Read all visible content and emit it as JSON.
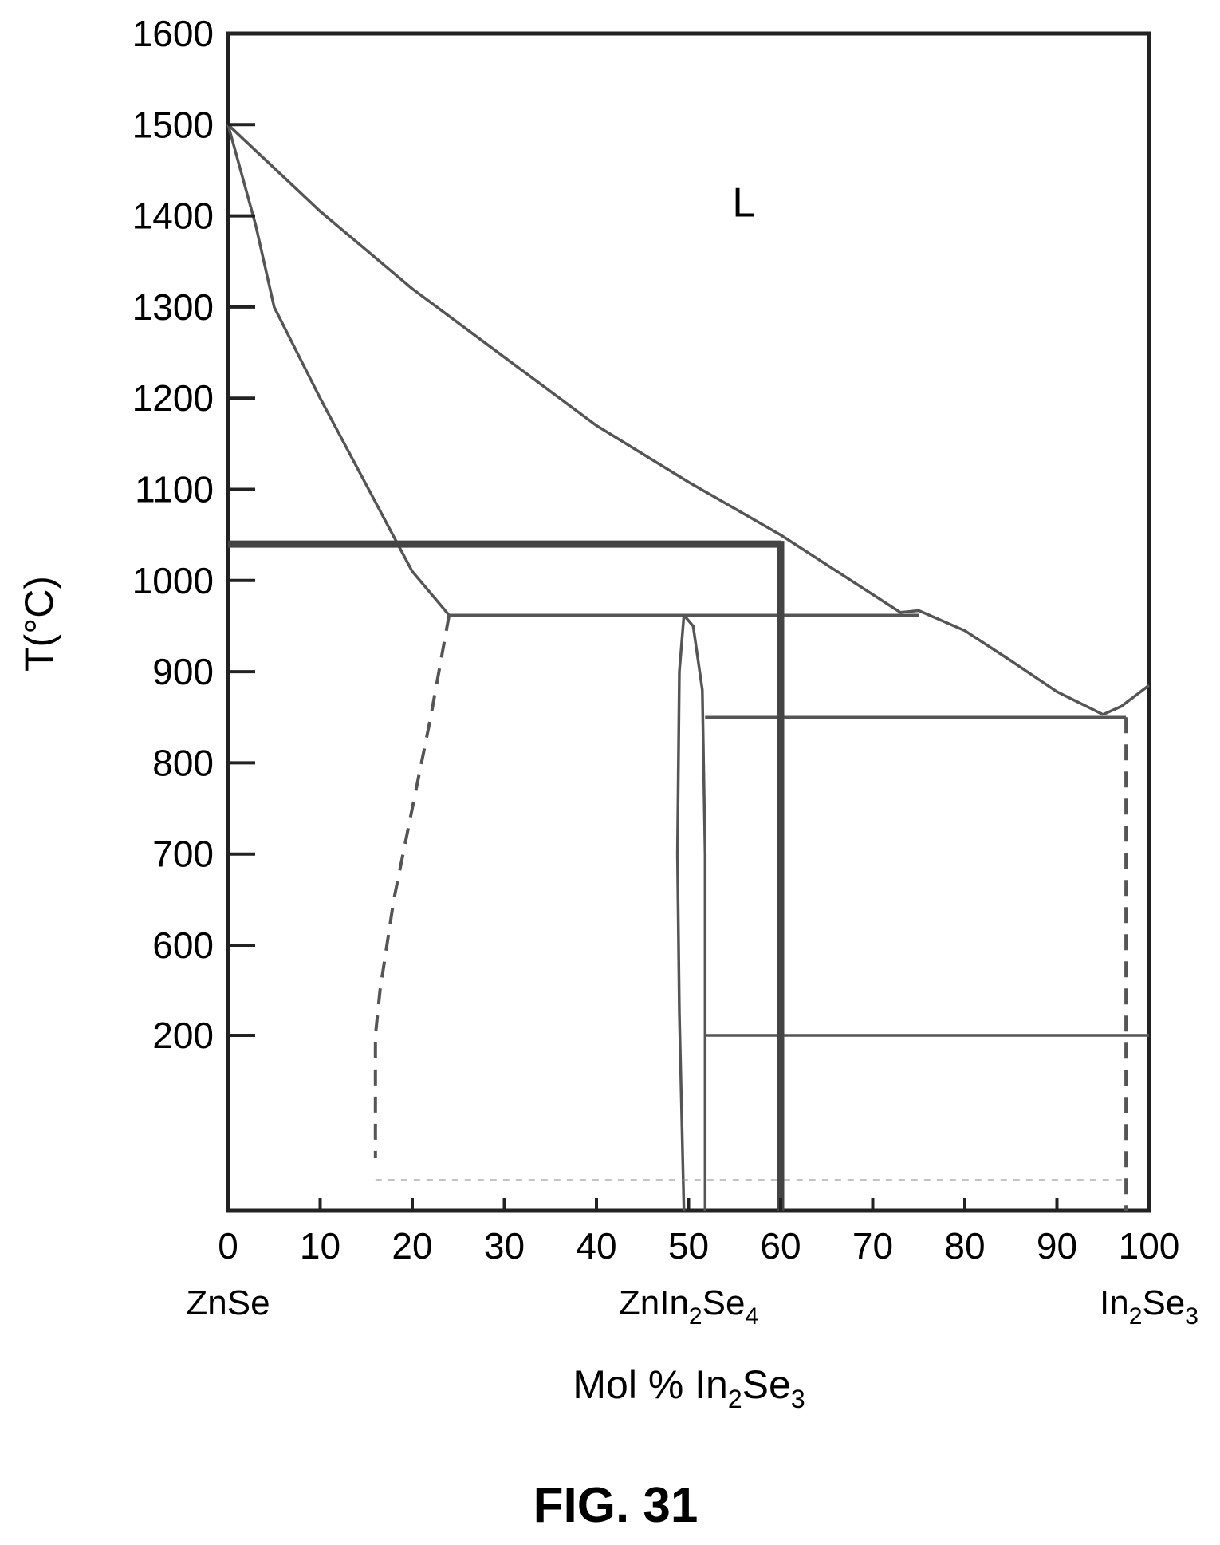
{
  "chart_data": {
    "type": "phase-diagram",
    "title": "",
    "xlabel": {
      "main": "Mol % In",
      "sub1": "2",
      "mid": "Se",
      "sub2": "3"
    },
    "ylabel": "T(°C)",
    "xlim": [
      0,
      100
    ],
    "x_ticks": [
      "0",
      "10",
      "20",
      "30",
      "40",
      "50",
      "60",
      "70",
      "80",
      "90",
      "100"
    ],
    "y_ticks": [
      "200",
      "600",
      "700",
      "800",
      "900",
      "1000",
      "1100",
      "1200",
      "1300",
      "1400",
      "1500",
      "1600"
    ],
    "compositions": [
      {
        "x": 0,
        "parts": [
          [
            "ZnSe",
            false
          ]
        ]
      },
      {
        "x": 50,
        "parts": [
          [
            "ZnIn",
            false
          ],
          [
            "2",
            true
          ],
          [
            "Se",
            false
          ],
          [
            "4",
            true
          ]
        ]
      },
      {
        "x": 100,
        "parts": [
          [
            "In",
            false
          ],
          [
            "2",
            true
          ],
          [
            "Se",
            false
          ],
          [
            "3",
            true
          ]
        ]
      }
    ],
    "regions": [
      {
        "label": "L",
        "x": 56,
        "y": 1415
      }
    ],
    "curves": [
      {
        "name": "liquidus",
        "style": "solid",
        "points": [
          [
            0,
            1500
          ],
          [
            10,
            1405
          ],
          [
            20,
            1320
          ],
          [
            30,
            1245
          ],
          [
            40,
            1170
          ],
          [
            50,
            1108
          ],
          [
            60,
            1050
          ],
          [
            73,
            965
          ],
          [
            75,
            967
          ],
          [
            80,
            945
          ],
          [
            85,
            912
          ],
          [
            90,
            878
          ],
          [
            95,
            853
          ]
        ]
      },
      {
        "name": "liquidus-in2se3",
        "style": "solid",
        "points": [
          [
            95,
            853
          ],
          [
            97,
            862
          ],
          [
            100,
            885
          ]
        ]
      },
      {
        "name": "solidus-znse",
        "style": "solid",
        "points": [
          [
            0,
            1500
          ],
          [
            3,
            1390
          ],
          [
            5,
            1300
          ],
          [
            10,
            1200
          ],
          [
            15,
            1105
          ],
          [
            20,
            1010
          ],
          [
            24,
            962
          ]
        ]
      },
      {
        "name": "solvus-znse",
        "style": "dashed",
        "points": [
          [
            24,
            962
          ],
          [
            22,
            850
          ],
          [
            20,
            750
          ],
          [
            18,
            650
          ],
          [
            16.5,
            400
          ],
          [
            16,
            200
          ],
          [
            16,
            60
          ]
        ]
      },
      {
        "name": "compound-left",
        "style": "solid",
        "points": [
          [
            49.5,
            962
          ],
          [
            49,
            900
          ],
          [
            48.8,
            700
          ],
          [
            49,
            300
          ],
          [
            49.5,
            0
          ]
        ]
      },
      {
        "name": "compound-right",
        "style": "solid",
        "points": [
          [
            49.5,
            962
          ],
          [
            50.5,
            950
          ],
          [
            51.5,
            880
          ],
          [
            51.8,
            700
          ],
          [
            51.8,
            0
          ]
        ]
      },
      {
        "name": "in2se3-solvus",
        "style": "dashed",
        "points": [
          [
            97.5,
            850
          ],
          [
            97.5,
            0
          ]
        ]
      }
    ],
    "horizontal_lines": [
      {
        "name": "eutectic-962",
        "y": 962,
        "x1": 24,
        "x2": 75,
        "style": "solid"
      },
      {
        "name": "eutectic-850",
        "y": 850,
        "x1": 51.8,
        "x2": 97.5,
        "style": "solid"
      },
      {
        "name": "transition-200",
        "y": 200,
        "x1": 51.8,
        "x2": 100,
        "style": "solid"
      },
      {
        "name": "low-temp-boundary",
        "y": 35,
        "x1": 16,
        "x2": 97.5,
        "style": "dotted"
      }
    ],
    "highlight": {
      "x": 60,
      "y": 1040
    }
  },
  "figure": {
    "label": "FIG. 31"
  }
}
